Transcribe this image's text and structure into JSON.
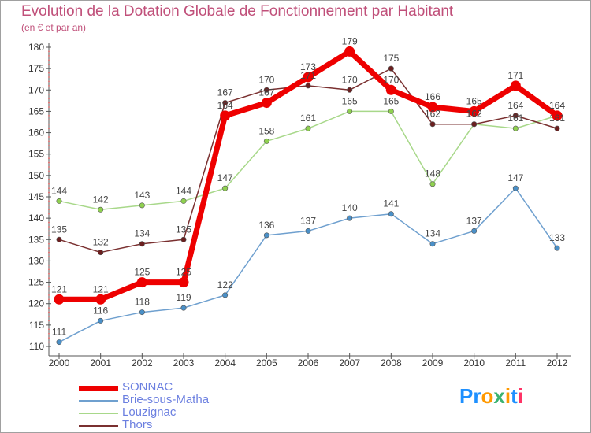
{
  "chart_data": {
    "type": "line",
    "title": "Evolution de la Dotation Globale de Fonctionnement par Habitant",
    "subtitle": "(en € et par an)",
    "xlabel": "",
    "ylabel": "",
    "categories": [
      "2000",
      "2001",
      "2002",
      "2003",
      "2004",
      "2005",
      "2006",
      "2007",
      "2008",
      "2009",
      "2010",
      "2011",
      "2012"
    ],
    "ylim": [
      110,
      180
    ],
    "yticks": [
      110,
      115,
      120,
      125,
      130,
      135,
      140,
      145,
      150,
      155,
      160,
      165,
      170,
      175,
      180
    ],
    "grid": false,
    "legend_position": "bottom-left",
    "series": [
      {
        "name": "SONNAC",
        "color": "#ee0000",
        "marker": "#ee0000",
        "values": [
          121,
          121,
          125,
          125,
          164,
          167,
          173,
          179,
          170,
          166,
          165,
          171,
          164
        ]
      },
      {
        "name": "Brie-sous-Matha",
        "color": "#6fa0cf",
        "marker": "#4a90c8",
        "values": [
          111,
          116,
          118,
          119,
          122,
          136,
          137,
          140,
          141,
          134,
          137,
          147,
          133
        ]
      },
      {
        "name": "Louzignac",
        "color": "#a8d88a",
        "marker": "#8fd14f",
        "values": [
          144,
          142,
          143,
          144,
          147,
          158,
          161,
          165,
          165,
          148,
          162,
          161,
          164
        ]
      },
      {
        "name": "Thors",
        "color": "#7a3030",
        "marker": "#6b1f1f",
        "values": [
          135,
          132,
          134,
          135,
          167,
          170,
          171,
          170,
          175,
          162,
          162,
          164,
          161
        ]
      }
    ]
  },
  "logo": {
    "text": "Proxiti",
    "letters": [
      "P",
      "r",
      "o",
      "x",
      "i",
      "t",
      "i"
    ],
    "colors": [
      "#1e90ff",
      "#1e90ff",
      "#ff9900",
      "#3cb371",
      "#ff9900",
      "#1e90ff",
      "#ff3366"
    ]
  }
}
